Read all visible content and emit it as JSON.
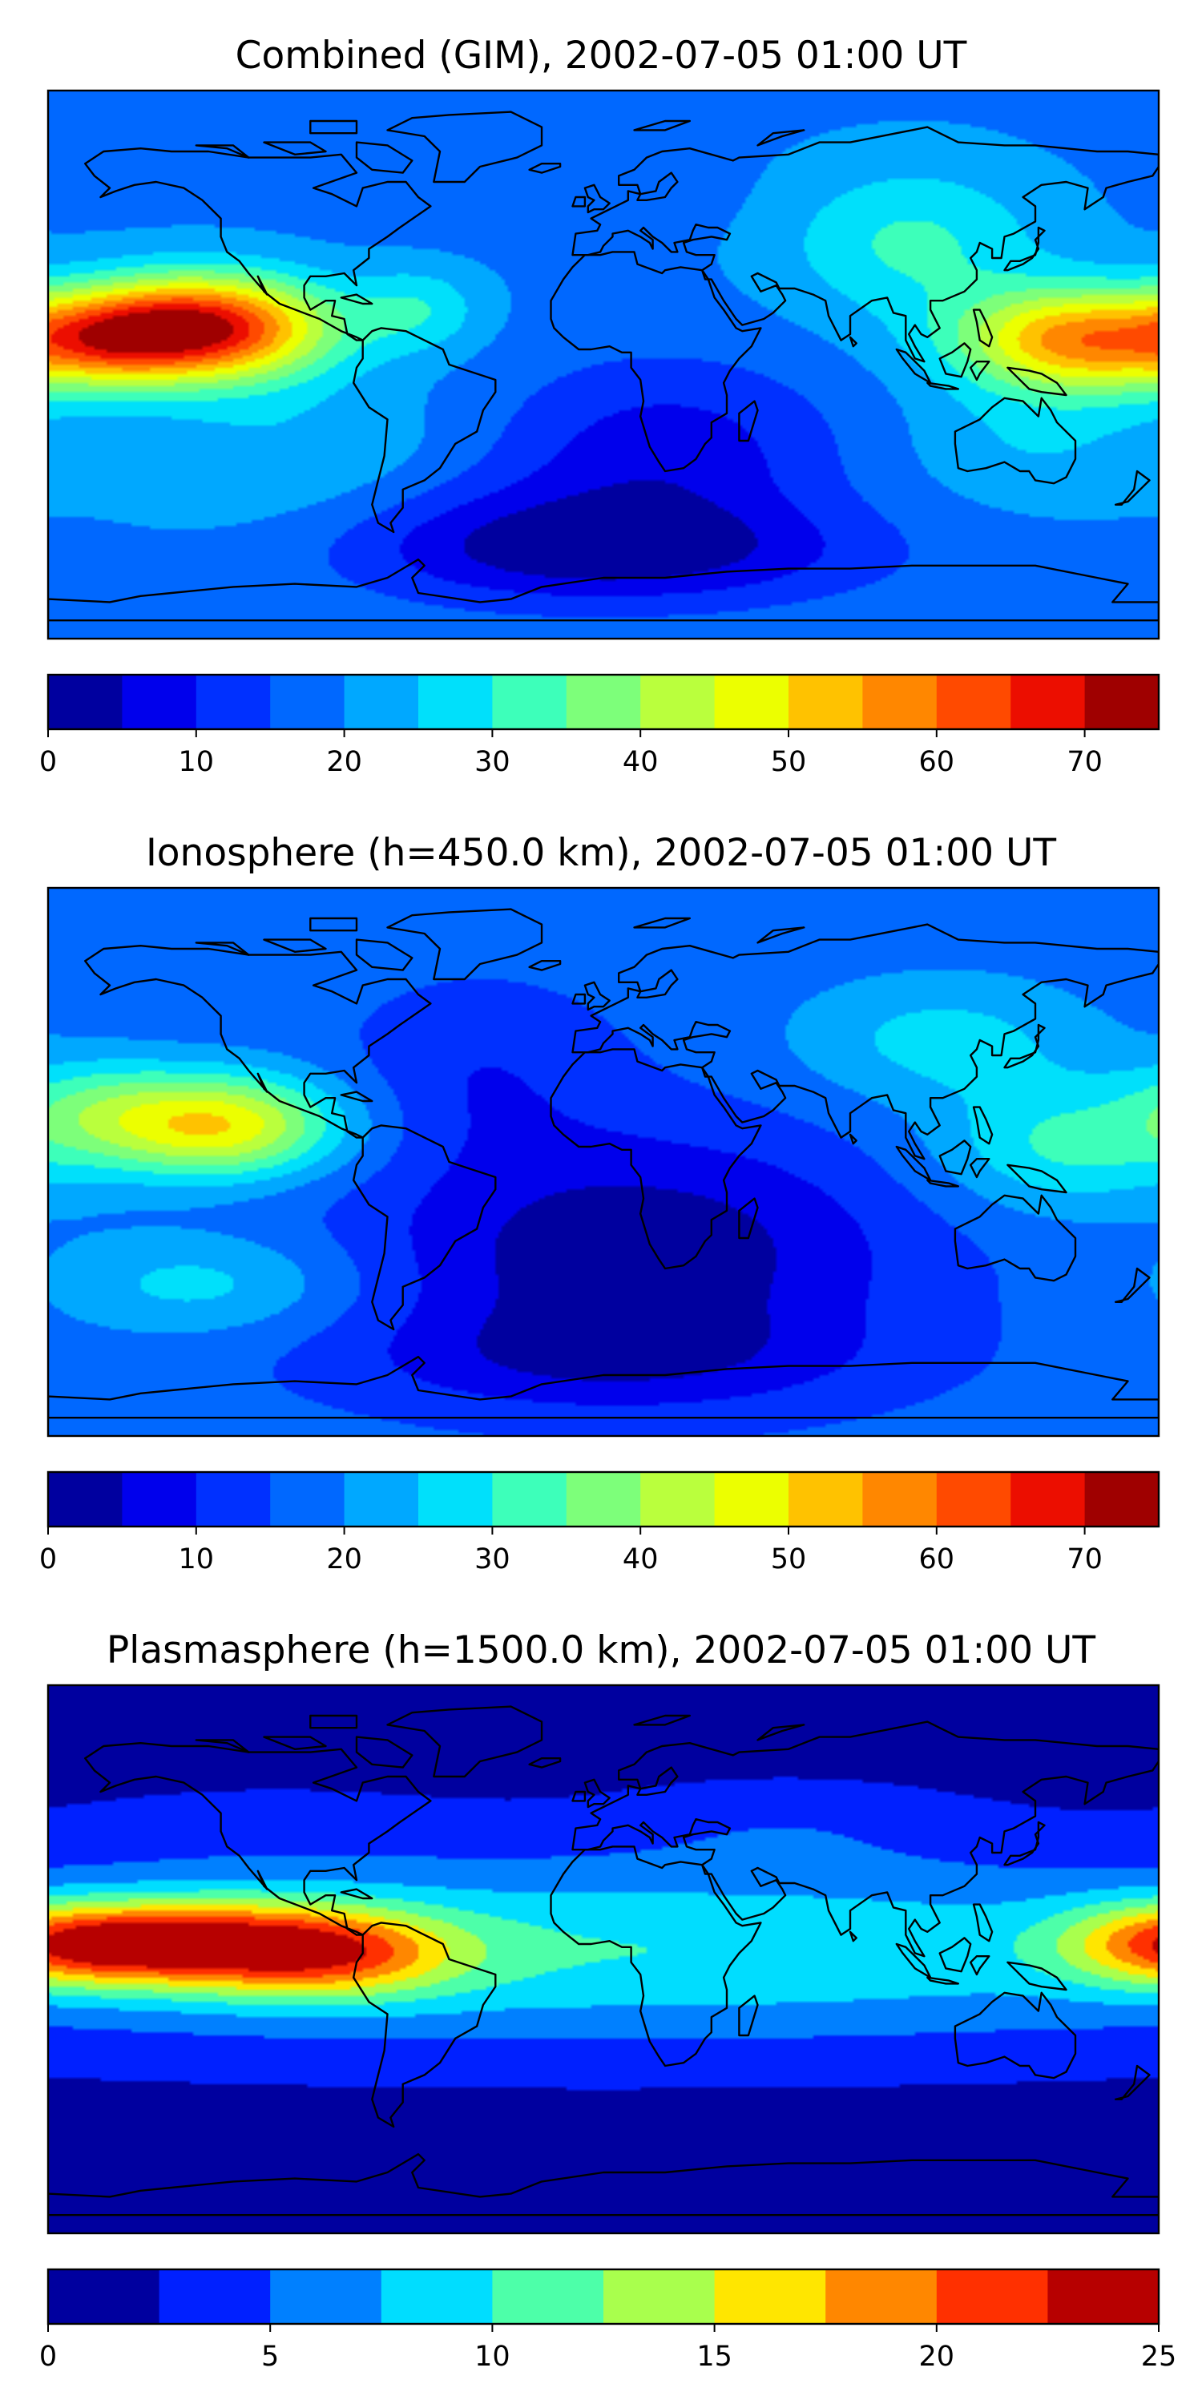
{
  "panels": [
    {
      "id": "combined",
      "title": "Combined (GIM), 2002-07-05 01:00 UT",
      "colorbar": {
        "min": 0,
        "max": 75,
        "step": 5,
        "ticks": [
          0,
          10,
          20,
          30,
          40,
          50,
          60,
          70
        ],
        "tick_labels": [
          "0",
          "10",
          "20",
          "30",
          "40",
          "50",
          "60",
          "70"
        ]
      },
      "field": {
        "base": 19,
        "blobs": [
          {
            "lon": -130,
            "lat": 12,
            "amp": 52,
            "slon": 28,
            "slat": 12
          },
          {
            "lon": -160,
            "lat": 8,
            "amp": 18,
            "slon": 18,
            "slat": 10
          },
          {
            "lon": 155,
            "lat": 8,
            "amp": 38,
            "slon": 28,
            "slat": 12
          },
          {
            "lon": 100,
            "lat": 40,
            "amp": 12,
            "slon": 30,
            "slat": 18
          },
          {
            "lon": 20,
            "lat": -30,
            "amp": -12,
            "slon": 40,
            "slat": 22
          },
          {
            "lon": 10,
            "lat": -62,
            "amp": -13,
            "slon": 55,
            "slat": 12
          },
          {
            "lon": -40,
            "lat": -55,
            "amp": -6,
            "slon": 40,
            "slat": 15
          },
          {
            "lon": -60,
            "lat": 18,
            "amp": 10,
            "slon": 15,
            "slat": 10
          },
          {
            "lon": -20,
            "lat": 55,
            "amp": -3,
            "slon": 40,
            "slat": 10
          },
          {
            "lon": -100,
            "lat": -30,
            "amp": 6,
            "slon": 40,
            "slat": 18
          },
          {
            "lon": 140,
            "lat": -25,
            "amp": 6,
            "slon": 30,
            "slat": 15
          }
        ]
      }
    },
    {
      "id": "ionosphere",
      "title": "Ionosphere  (h=450.0 km), 2002-07-05 01:00 UT",
      "colorbar": {
        "min": 0,
        "max": 75,
        "step": 5,
        "ticks": [
          0,
          10,
          20,
          30,
          40,
          50,
          60,
          70
        ],
        "tick_labels": [
          "0",
          "10",
          "20",
          "30",
          "40",
          "50",
          "60",
          "70"
        ]
      },
      "field": {
        "base": 17,
        "blobs": [
          {
            "lon": -125,
            "lat": 12,
            "amp": 33,
            "slon": 28,
            "slat": 12
          },
          {
            "lon": -165,
            "lat": 18,
            "amp": 10,
            "slon": 20,
            "slat": 12
          },
          {
            "lon": 150,
            "lat": 5,
            "amp": 14,
            "slon": 30,
            "slat": 15
          },
          {
            "lon": 110,
            "lat": 40,
            "amp": 10,
            "slon": 35,
            "slat": 15
          },
          {
            "lon": 10,
            "lat": -30,
            "amp": -16,
            "slon": 60,
            "slat": 28
          },
          {
            "lon": 0,
            "lat": -65,
            "amp": -8,
            "slon": 60,
            "slat": 12
          },
          {
            "lon": -40,
            "lat": 30,
            "amp": -6,
            "slon": 30,
            "slat": 20
          },
          {
            "lon": -130,
            "lat": -40,
            "amp": 10,
            "slon": 35,
            "slat": 12
          }
        ]
      }
    },
    {
      "id": "plasmasphere",
      "title": "Plasmasphere (h=1500.0 km), 2002-07-05 01:00 UT",
      "colorbar": {
        "min": 0,
        "max": 25,
        "step": 2.5,
        "ticks": [
          0,
          5,
          10,
          15,
          20,
          25
        ],
        "tick_labels": [
          "0",
          "5",
          "10",
          "15",
          "20",
          "25"
        ]
      },
      "field": {
        "base": 1.5,
        "blobs": [
          {
            "lon": 0,
            "lat": 3,
            "amp": 8.5,
            "slon": 220,
            "slat": 22
          },
          {
            "lon": -130,
            "lat": 5,
            "amp": 14,
            "slon": 32,
            "slat": 10
          },
          {
            "lon": -85,
            "lat": 2,
            "amp": 10,
            "slon": 28,
            "slat": 10
          },
          {
            "lon": -160,
            "lat": 5,
            "amp": 6,
            "slon": 20,
            "slat": 8
          },
          {
            "lon": 175,
            "lat": 5,
            "amp": 8,
            "slon": 22,
            "slat": 10
          },
          {
            "lon": 60,
            "lat": 45,
            "amp": 2,
            "slon": 40,
            "slat": 10
          },
          {
            "lon": -110,
            "lat": 45,
            "amp": 1,
            "slon": 50,
            "slat": 10
          }
        ]
      }
    }
  ],
  "colors": {
    "levels_15": [
      "#00009f",
      "#0000ec",
      "#0030ff",
      "#0068ff",
      "#00a8ff",
      "#00e0fb",
      "#3dffba",
      "#7dff7a",
      "#baff3d",
      "#ecff00",
      "#ffc200",
      "#ff8700",
      "#ff4a00",
      "#ec0e00",
      "#9f0000"
    ],
    "levels_10": [
      "#00009f",
      "#0020ff",
      "#0080ff",
      "#00ddff",
      "#4dffa9",
      "#a9ff4d",
      "#ffe600",
      "#ff8700",
      "#ff3000",
      "#b70000"
    ],
    "coastline": "#000000",
    "frame": "#000000"
  }
}
